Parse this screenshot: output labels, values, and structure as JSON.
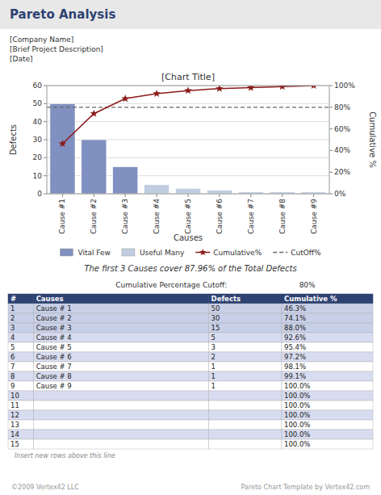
{
  "chart_data": {
    "type": "bar",
    "title": "[Chart Title]",
    "x_label": "Causes",
    "y_label": "Defects",
    "y2_label": "Cumulative %",
    "categories": [
      "Cause #1",
      "Cause #2",
      "Cause #3",
      "Cause #4",
      "Cause #5",
      "Cause #6",
      "Cause #7",
      "Cause #8",
      "Cause #9"
    ],
    "series": [
      {
        "name": "Vital Few",
        "type": "bar",
        "color": "#8090C0",
        "values": [
          50,
          30,
          15,
          null,
          null,
          null,
          null,
          null,
          null
        ]
      },
      {
        "name": "Useful Many",
        "type": "bar",
        "color": "#C0CCE0",
        "values": [
          null,
          null,
          null,
          5,
          3,
          2,
          1,
          1,
          1
        ]
      },
      {
        "name": "Cumulative%",
        "type": "line",
        "axis": "y2",
        "color": "#8B1A1A",
        "marker": "star",
        "line_style": "solid",
        "values": [
          46.3,
          74.1,
          88.0,
          92.6,
          95.4,
          97.2,
          98.1,
          99.1,
          100.0
        ]
      }
    ],
    "cutoff": {
      "name": "CutOff%",
      "value": 80,
      "label": "80%",
      "axis": "y2",
      "color": "#666666",
      "line_style": "dashed"
    },
    "ylim": [
      0,
      60
    ],
    "yticks": [
      0,
      10,
      20,
      30,
      40,
      50,
      60
    ],
    "y2lim": [
      0,
      100
    ],
    "y2ticks": [
      {
        "value": 0,
        "label": "0%"
      },
      {
        "value": 20,
        "label": "20%"
      },
      {
        "value": 40,
        "label": "40%"
      },
      {
        "value": 60,
        "label": "60%"
      },
      {
        "value": 80,
        "label": "80%"
      },
      {
        "value": 100,
        "label": "100%"
      }
    ],
    "grid": true,
    "legend": "bottom",
    "summary": "The first 3 Causes cover 87.96% of the Total Defects"
  },
  "page": {
    "title": "Pareto Analysis",
    "title_color": "#2E4272",
    "title_bar_color": "#E8E8E8",
    "header_lines": [
      "[Company Name]",
      "[Brief Project Description]",
      "[Date]"
    ],
    "cutoff_caption": "Cumulative Percentage Cutoff:",
    "table": {
      "columns": [
        "#",
        "Causes",
        "Defects",
        "Cumulative %"
      ],
      "header_color": "#2E4272",
      "header_text_color": "#FFFFFF",
      "row_colors": [
        "#C8D0E8",
        "#C8D0E8",
        "#C8D0E8",
        "#D8DCF0",
        "#FFFFFF",
        "#D8DCF0",
        "#FFFFFF",
        "#D8DCF0",
        "#FFFFFF",
        "#D8DCF0",
        "#FFFFFF",
        "#D8DCF0",
        "#FFFFFF",
        "#D8DCF0",
        "#FFFFFF"
      ],
      "rows": [
        [
          1,
          "Cause # 1",
          "50",
          "46.3%"
        ],
        [
          2,
          "Cause # 2",
          "30",
          "74.1%"
        ],
        [
          3,
          "Cause # 3",
          "15",
          "88.0%"
        ],
        [
          4,
          "Cause # 4",
          "5",
          "92.6%"
        ],
        [
          5,
          "Cause # 5",
          "3",
          "95.4%"
        ],
        [
          6,
          "Cause # 6",
          "2",
          "97.2%"
        ],
        [
          7,
          "Cause # 7",
          "1",
          "98.1%"
        ],
        [
          8,
          "Cause # 8",
          "1",
          "99.1%"
        ],
        [
          9,
          "Cause # 9",
          "1",
          "100.0%"
        ],
        [
          10,
          null,
          null,
          "100.0%"
        ],
        [
          11,
          null,
          null,
          "100.0%"
        ],
        [
          12,
          null,
          null,
          "100.0%"
        ],
        [
          13,
          null,
          null,
          "100.0%"
        ],
        [
          14,
          null,
          null,
          "100.0%"
        ],
        [
          15,
          null,
          null,
          "100.0%"
        ]
      ]
    },
    "table_note": "Insert new rows above this line",
    "footer_left": "©2009 Vertex42 LLC",
    "footer_right": "Pareto Chart Template by Vertex42.com"
  }
}
